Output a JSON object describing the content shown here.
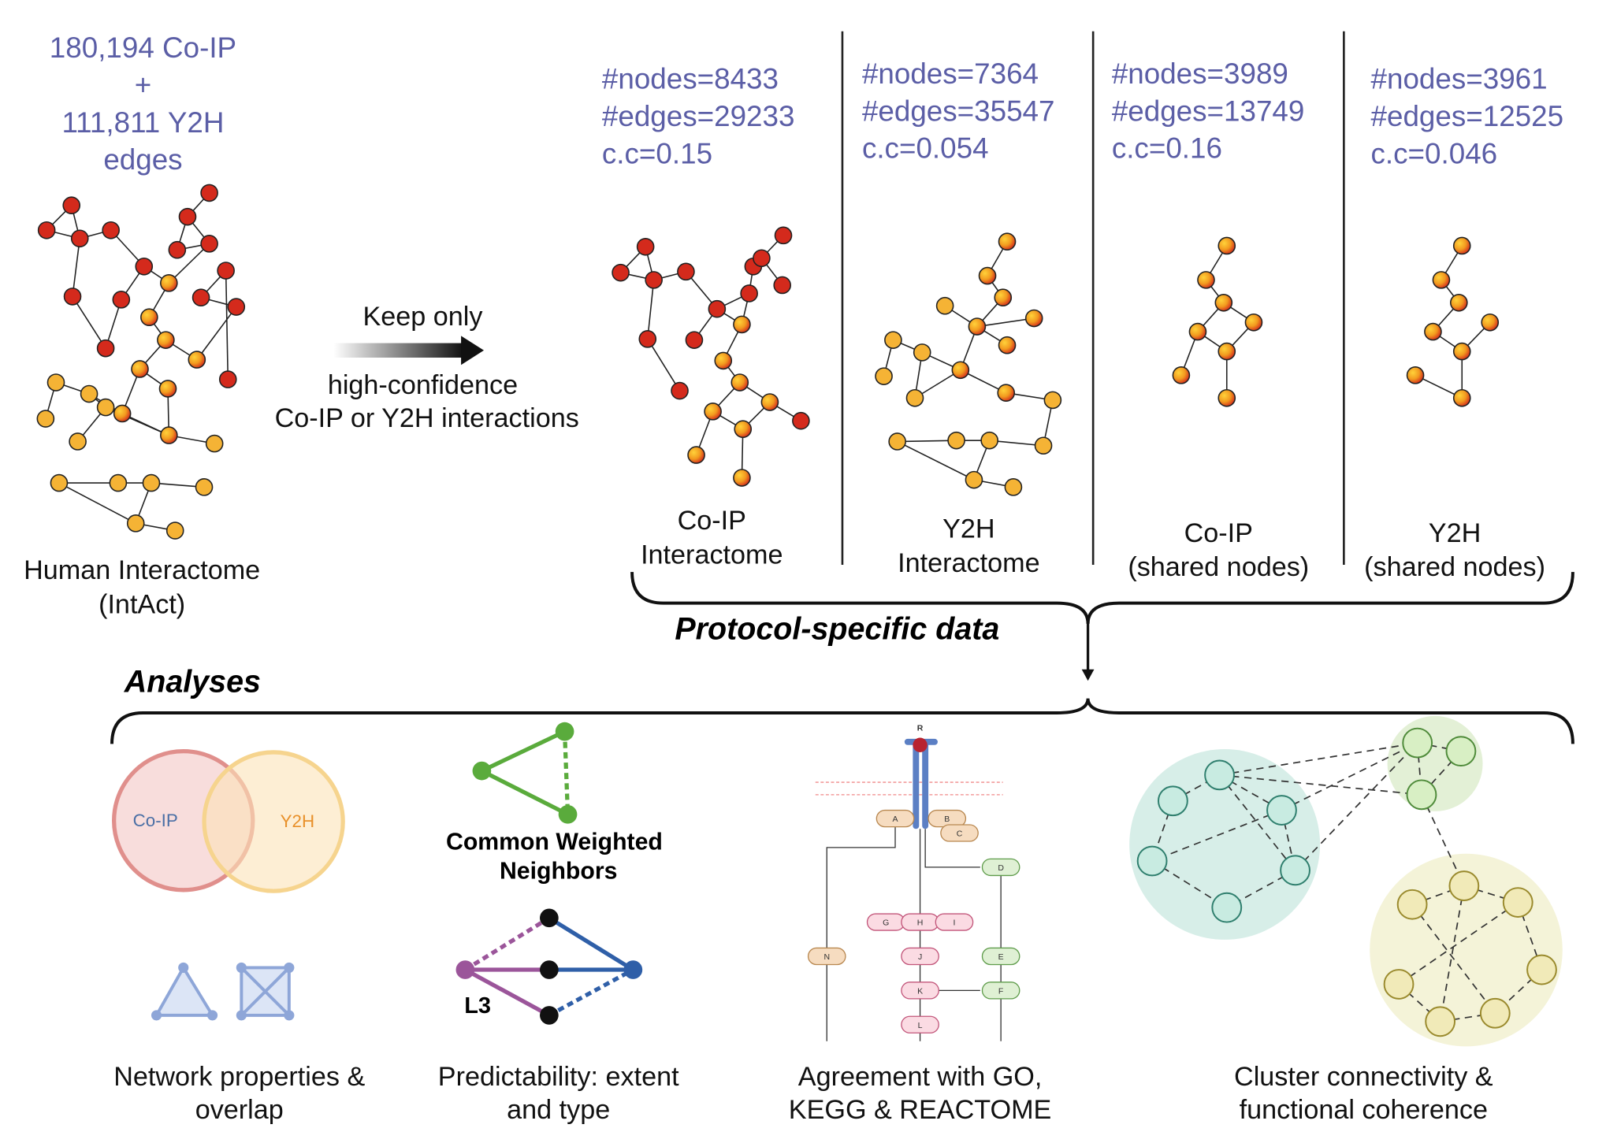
{
  "source": {
    "header": [
      "180,194 Co-IP",
      "+",
      "111,811 Y2H",
      "edges"
    ],
    "caption": [
      "Human Interactome",
      "(IntAct)"
    ]
  },
  "filter": {
    "lines": [
      "Keep only",
      "high-confidence",
      "Co-IP or Y2H interactions"
    ]
  },
  "panels": [
    {
      "stats": [
        "#nodes=8433",
        "#edges=29233",
        "c.c=0.15"
      ],
      "caption": [
        "Co-IP",
        "Interactome"
      ]
    },
    {
      "stats": [
        "#nodes=7364",
        "#edges=35547",
        "c.c=0.054"
      ],
      "caption": [
        "Y2H",
        "Interactome"
      ]
    },
    {
      "stats": [
        "#nodes=3989",
        "#edges=13749",
        "c.c=0.16"
      ],
      "caption": [
        "Co-IP",
        "(shared nodes)"
      ]
    },
    {
      "stats": [
        "#nodes=3961",
        "#edges=12525",
        "c.c=0.046"
      ],
      "caption": [
        "Y2H",
        "(shared nodes)"
      ]
    }
  ],
  "brace_label": "Protocol-specific data",
  "analyses": {
    "title": "Analyses",
    "venn": [
      "Co-IP",
      "Y2H"
    ],
    "cwn": [
      "Common Weighted",
      "Neighbors"
    ],
    "l3": "L3",
    "pathway": {
      "receptor": "R",
      "nodes": [
        "A",
        "B",
        "C",
        "D",
        "G",
        "H",
        "I",
        "J",
        "K",
        "L",
        "N",
        "E",
        "F"
      ]
    },
    "items": [
      {
        "caption": [
          "Network properties &",
          "overlap"
        ]
      },
      {
        "caption": [
          "Predictability: extent",
          "and type"
        ]
      },
      {
        "caption": [
          "Agreement with GO,",
          "KEGG & REACTOME"
        ]
      },
      {
        "caption": [
          "Cluster connectivity &",
          "functional coherence"
        ]
      }
    ]
  }
}
